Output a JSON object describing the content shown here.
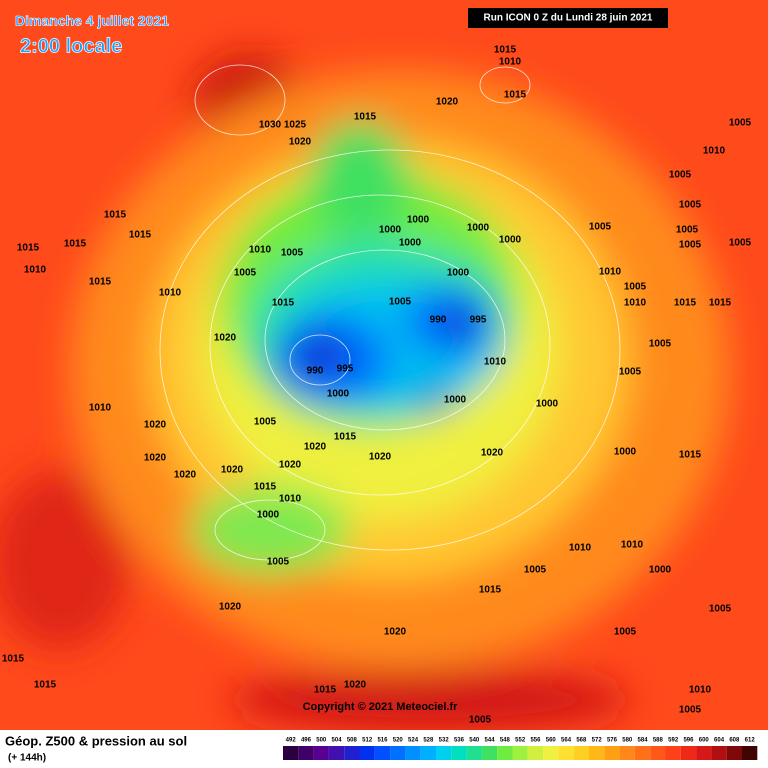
{
  "header": {
    "date": "Dimanche 4 juillet 2021",
    "time": "2:00 locale",
    "run": "Run ICON 0 Z du Lundi 28 juin 2021"
  },
  "map": {
    "copyright": "Copyright © 2021 Meteociel.fr",
    "isobar_labels": [
      1015,
      1010,
      1015,
      1020,
      1015,
      1030,
      1025,
      1020,
      1005,
      1010,
      1005,
      1005,
      1005,
      1005,
      1005,
      1005,
      1015,
      1015,
      1010,
      1015,
      1010,
      1015,
      1015,
      1010,
      1005,
      1005,
      1000,
      1000,
      1000,
      1000,
      1000,
      1000,
      1005,
      1015,
      1010,
      1005,
      1010,
      1015,
      1015,
      990,
      995,
      1020,
      990,
      995,
      1000,
      1010,
      1000,
      1000,
      1005,
      1005,
      1010,
      1020,
      1005,
      1020,
      1015,
      1020,
      1020,
      1000,
      1015,
      1020,
      1020,
      1020,
      1020,
      1015,
      1010,
      1000,
      1005,
      1020,
      1015,
      1005,
      1010,
      1010,
      1000,
      1005,
      1005,
      1020,
      1015,
      1015,
      1015,
      1020,
      1005,
      1010,
      1005
    ]
  },
  "footer": {
    "title": "Géop. Z500 & pression au sol",
    "lead": "(+ 144h)",
    "scale": [
      492,
      496,
      500,
      504,
      508,
      512,
      516,
      520,
      524,
      528,
      532,
      536,
      540,
      544,
      548,
      552,
      556,
      560,
      564,
      568,
      572,
      576,
      580,
      584,
      588,
      592,
      596,
      600,
      604,
      608,
      612
    ],
    "colors": [
      "#2a0040",
      "#40006a",
      "#5a0090",
      "#4010b0",
      "#2020d0",
      "#0030f0",
      "#0050ff",
      "#0070ff",
      "#0090ff",
      "#00b0ff",
      "#00d0f0",
      "#00e0c0",
      "#20e090",
      "#40e060",
      "#70ec40",
      "#a0f040",
      "#d0f040",
      "#f0f040",
      "#ffe030",
      "#ffd020",
      "#ffb818",
      "#ffa010",
      "#ff8818",
      "#ff7018",
      "#ff5818",
      "#ff4018",
      "#f02818",
      "#d81818",
      "#b01010",
      "#800808",
      "#400404"
    ]
  }
}
